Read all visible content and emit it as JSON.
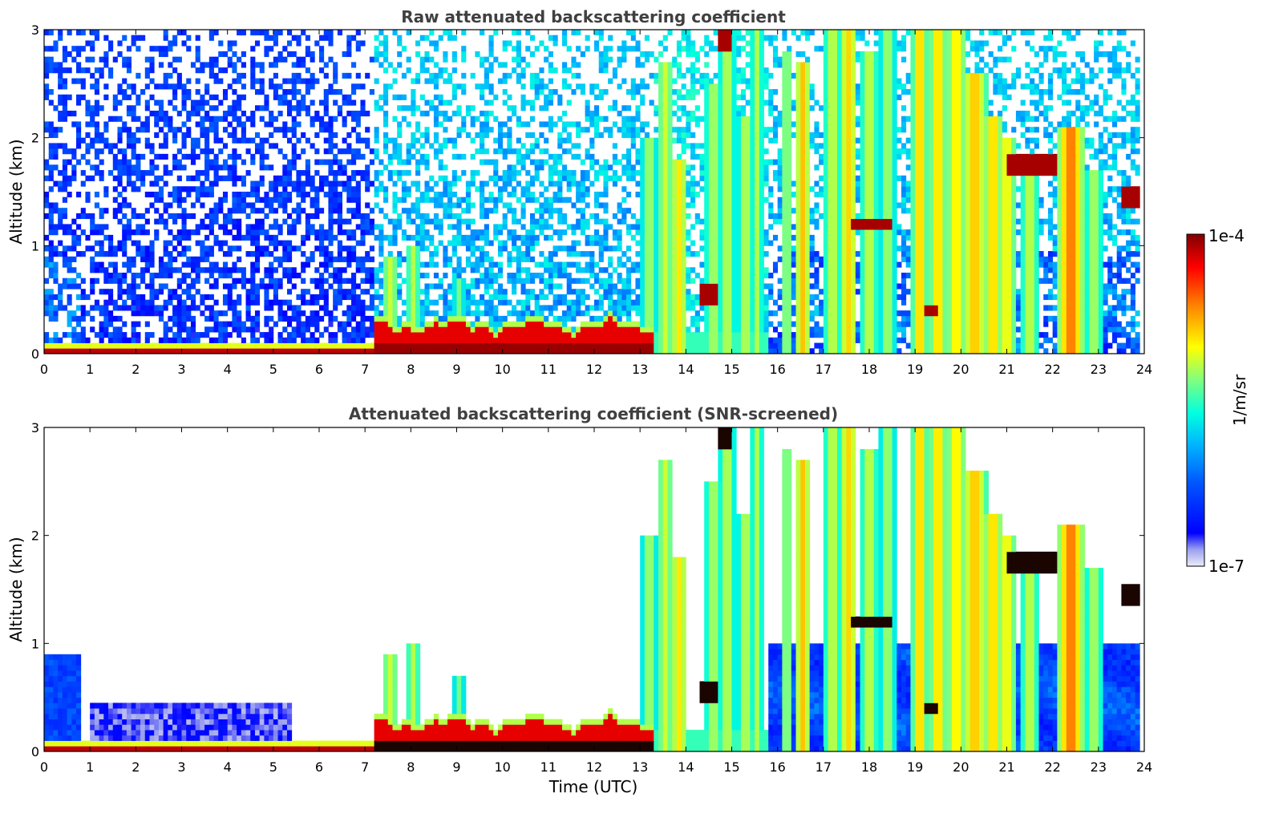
{
  "chart_data": [
    {
      "type": "heatmap",
      "title": "Raw attenuated backscattering coefficient",
      "xlabel": "",
      "ylabel": "Altitude (km)",
      "xlim": [
        0,
        24
      ],
      "ylim": [
        0,
        3
      ],
      "x_ticks": [
        0,
        1,
        2,
        3,
        4,
        5,
        6,
        7,
        8,
        9,
        10,
        11,
        12,
        13,
        14,
        15,
        16,
        17,
        18,
        19,
        20,
        21,
        22,
        23,
        24
      ],
      "y_ticks": [
        0,
        1,
        2,
        3
      ],
      "layers": [
        {
          "feature": "surface aerosol layer",
          "x_range": [
            0,
            7.2
          ],
          "y_top": 0.1,
          "level": "high"
        },
        {
          "feature": "boundary layer aerosol",
          "x_range": [
            7.2,
            13.2
          ],
          "y_top": 0.3,
          "level": "high"
        },
        {
          "feature": "tall cloud columns",
          "x_range": [
            13.2,
            15.8
          ],
          "y_top": 3.0,
          "level": "medium-high"
        },
        {
          "feature": "cloud layer",
          "x_range": [
            17.6,
            18.5
          ],
          "y": 1.2,
          "level": "high"
        },
        {
          "feature": "cloud layer",
          "x_range": [
            21.0,
            22.1
          ],
          "y": 1.8,
          "level": "high"
        },
        {
          "feature": "vertical columns",
          "x_range": [
            16.0,
            23.0
          ],
          "y_top": 3.0,
          "level": "medium"
        }
      ]
    },
    {
      "type": "heatmap",
      "title": "Attenuated backscattering coefficient (SNR-screened)",
      "xlabel": "Time (UTC)",
      "ylabel": "Altitude (km)",
      "xlim": [
        0,
        24
      ],
      "ylim": [
        0,
        3
      ],
      "x_ticks": [
        0,
        1,
        2,
        3,
        4,
        5,
        6,
        7,
        8,
        9,
        10,
        11,
        12,
        13,
        14,
        15,
        16,
        17,
        18,
        19,
        20,
        21,
        22,
        23,
        24
      ],
      "y_ticks": [
        0,
        1,
        2,
        3
      ],
      "layers": [
        {
          "feature": "surface aerosol layer",
          "x_range": [
            0,
            7.2
          ],
          "y_top": 0.1,
          "level": "high"
        },
        {
          "feature": "boundary layer aerosol",
          "x_range": [
            7.2,
            13.2
          ],
          "y_top": 0.3,
          "level": "high"
        },
        {
          "feature": "cloud layer",
          "x_range": [
            17.6,
            18.5
          ],
          "y": 1.2,
          "level": "high"
        },
        {
          "feature": "cloud layer",
          "x_range": [
            21.0,
            22.1
          ],
          "y": 1.8,
          "level": "high"
        }
      ]
    }
  ],
  "colorbar": {
    "label": "1/m/sr",
    "max_label": "1e-4",
    "min_label": "1e-7",
    "scale": "log",
    "colormap": "jet",
    "colors": [
      "#e6e6f5",
      "#0000ff",
      "#00a0ff",
      "#00ffff",
      "#7fff7f",
      "#ffff00",
      "#ff8000",
      "#ff0000",
      "#800000"
    ]
  }
}
